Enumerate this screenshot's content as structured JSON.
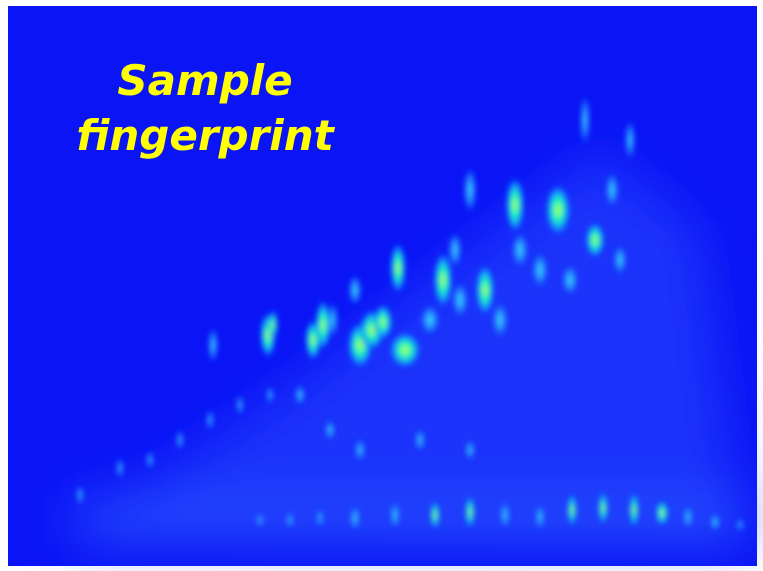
{
  "title": {
    "lines": [
      "Sample",
      "fingerprint"
    ]
  }
}
